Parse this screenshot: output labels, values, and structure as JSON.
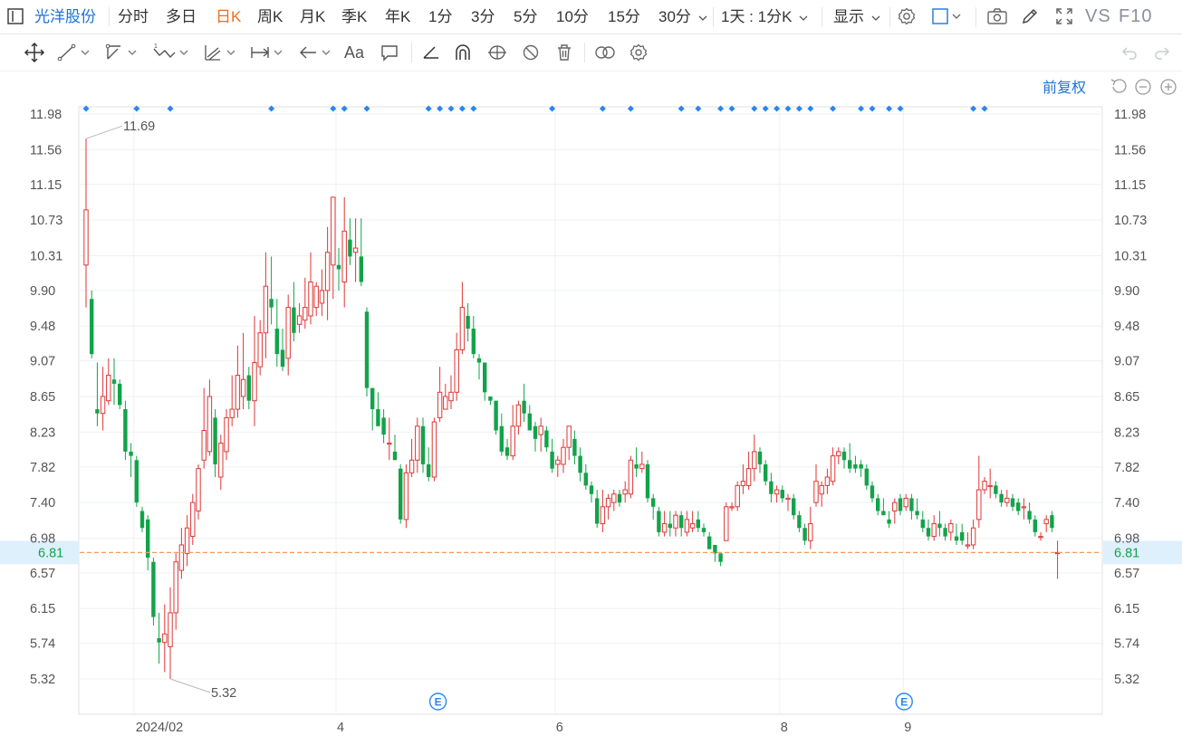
{
  "topbar": {
    "stock_name": "光洋股份",
    "periods": [
      {
        "label": "分时",
        "active": false
      },
      {
        "label": "多日",
        "active": false
      },
      {
        "label": "日K",
        "active": true
      },
      {
        "label": "周K",
        "active": false
      },
      {
        "label": "月K",
        "active": false
      },
      {
        "label": "季K",
        "active": false
      },
      {
        "label": "年K",
        "active": false
      },
      {
        "label": "1分",
        "active": false
      },
      {
        "label": "3分",
        "active": false
      },
      {
        "label": "5分",
        "active": false
      },
      {
        "label": "10分",
        "active": false
      },
      {
        "label": "15分",
        "active": false
      }
    ],
    "period_dropdown": "30分",
    "interval_dropdown": "1天 : 1分K",
    "display_dropdown": "显示",
    "vs_label": "VS",
    "f10_label": "F10"
  },
  "toolbar": {
    "icons": [
      "move-icon",
      "line-icon",
      "ray-icon",
      "wave-icon",
      "channel-icon",
      "range-icon",
      "arrow-icon",
      "text-icon",
      "comment-icon",
      "angle-icon",
      "arch-icon",
      "gann-icon",
      "hide-icon",
      "delete-icon",
      "overlay-icon",
      "settings-icon"
    ]
  },
  "chart": {
    "adjust_label": "前复权",
    "current_price": "6.81",
    "colors": {
      "up": "#e03636",
      "down": "#12a34a",
      "price_line": "#f59a5a",
      "marker": "#2a86f0",
      "grid": "#eef0f3"
    }
  },
  "chart_data": {
    "type": "candlestick",
    "y_ticks": [
      "11.98",
      "11.56",
      "11.15",
      "10.73",
      "10.31",
      "9.90",
      "9.48",
      "9.07",
      "8.65",
      "8.23",
      "7.82",
      "7.40",
      "6.98",
      "6.57",
      "6.15",
      "5.74",
      "5.32"
    ],
    "ylim": [
      5.12,
      12.12
    ],
    "x_labels": [
      {
        "label": "2024/02",
        "index": 9
      },
      {
        "label": "4",
        "index": 45
      },
      {
        "label": "6",
        "index": 84
      },
      {
        "label": "8",
        "index": 124
      },
      {
        "label": "9",
        "index": 146
      }
    ],
    "grid_indices": [
      9,
      45,
      84,
      124,
      146
    ],
    "max_label": "11.69",
    "min_label": "5.32",
    "current_price": 6.81,
    "event_marker": "E",
    "event_indices": [
      63,
      146
    ],
    "diamond_indices": [
      0,
      9,
      15,
      33,
      44,
      46,
      50,
      61,
      63,
      65,
      67,
      69,
      83,
      92,
      97,
      106,
      109,
      113,
      115,
      119,
      121,
      123,
      125,
      127,
      129,
      133,
      138,
      140,
      143,
      145,
      158,
      160
    ],
    "candles": [
      [
        10.2,
        10.85,
        9.7,
        11.69
      ],
      [
        9.8,
        9.15,
        9.1,
        9.9
      ],
      [
        8.5,
        8.45,
        8.3,
        9.05
      ],
      [
        8.45,
        8.65,
        8.25,
        9.0
      ],
      [
        8.6,
        8.9,
        8.55,
        9.1
      ],
      [
        8.85,
        8.8,
        8.55,
        9.1
      ],
      [
        8.8,
        8.55,
        8.5,
        8.85
      ],
      [
        8.5,
        8.0,
        7.9,
        8.6
      ],
      [
        8.0,
        7.95,
        7.7,
        8.1
      ],
      [
        7.9,
        7.4,
        7.35,
        7.95
      ],
      [
        7.3,
        7.1,
        7.05,
        7.35
      ],
      [
        7.2,
        6.75,
        6.6,
        7.25
      ],
      [
        6.7,
        6.05,
        5.95,
        6.75
      ],
      [
        5.8,
        5.75,
        5.5,
        6.1
      ],
      [
        5.75,
        5.85,
        5.4,
        6.2
      ],
      [
        5.7,
        6.1,
        5.32,
        6.4
      ],
      [
        6.1,
        6.7,
        5.9,
        6.8
      ],
      [
        6.6,
        6.9,
        6.5,
        7.1
      ],
      [
        6.8,
        7.1,
        6.65,
        7.25
      ],
      [
        7.0,
        7.4,
        6.9,
        7.5
      ],
      [
        7.3,
        7.8,
        7.2,
        7.85
      ],
      [
        7.9,
        8.25,
        7.8,
        8.75
      ],
      [
        8.0,
        8.65,
        7.95,
        8.85
      ],
      [
        8.4,
        7.85,
        7.7,
        8.5
      ],
      [
        7.7,
        8.1,
        7.55,
        8.2
      ],
      [
        8.0,
        8.4,
        7.9,
        8.5
      ],
      [
        8.4,
        8.5,
        8.3,
        8.9
      ],
      [
        8.5,
        8.9,
        8.4,
        9.25
      ],
      [
        8.65,
        8.85,
        8.5,
        9.4
      ],
      [
        8.9,
        8.6,
        8.5,
        9.0
      ],
      [
        8.6,
        9.05,
        8.3,
        9.6
      ],
      [
        9.0,
        9.4,
        8.9,
        9.55
      ],
      [
        9.4,
        9.95,
        9.1,
        10.35
      ],
      [
        9.8,
        9.7,
        9.5,
        10.3
      ],
      [
        9.45,
        9.15,
        9.0,
        9.8
      ],
      [
        9.2,
        9.0,
        8.95,
        9.45
      ],
      [
        9.1,
        9.7,
        8.9,
        9.85
      ],
      [
        9.7,
        9.4,
        9.3,
        10.0
      ],
      [
        9.5,
        9.6,
        9.4,
        9.75
      ],
      [
        9.55,
        9.7,
        9.45,
        10.05
      ],
      [
        9.6,
        10.0,
        9.5,
        10.35
      ],
      [
        9.7,
        9.95,
        9.6,
        10.0
      ],
      [
        9.75,
        9.9,
        9.6,
        10.15
      ],
      [
        9.9,
        10.35,
        9.55,
        10.65
      ],
      [
        10.2,
        11.0,
        9.8,
        11.0
      ],
      [
        10.2,
        10.15,
        9.9,
        10.4
      ],
      [
        10.0,
        10.6,
        9.7,
        11.0
      ],
      [
        10.5,
        10.3,
        10.2,
        10.75
      ],
      [
        10.35,
        10.4,
        10.0,
        10.75
      ],
      [
        10.3,
        10.0,
        9.95,
        10.75
      ],
      [
        9.65,
        8.75,
        8.65,
        9.7
      ],
      [
        8.75,
        8.5,
        8.25,
        8.75
      ],
      [
        8.5,
        8.3,
        8.3,
        8.7
      ],
      [
        8.4,
        8.2,
        8.1,
        8.5
      ],
      [
        8.1,
        8.1,
        7.9,
        8.4
      ],
      [
        8.0,
        7.9,
        7.9,
        8.2
      ],
      [
        7.8,
        7.2,
        7.15,
        7.85
      ],
      [
        7.2,
        7.75,
        7.1,
        7.85
      ],
      [
        7.75,
        7.9,
        7.7,
        8.15
      ],
      [
        7.9,
        8.3,
        7.75,
        8.4
      ],
      [
        8.3,
        7.85,
        7.75,
        8.4
      ],
      [
        7.85,
        7.7,
        7.65,
        8.05
      ],
      [
        7.7,
        8.35,
        7.65,
        8.4
      ],
      [
        8.4,
        8.7,
        8.35,
        9.0
      ],
      [
        8.5,
        8.65,
        8.5,
        8.8
      ],
      [
        8.6,
        8.7,
        8.5,
        8.9
      ],
      [
        8.7,
        9.2,
        8.6,
        9.4
      ],
      [
        9.2,
        9.7,
        9.15,
        10.0
      ],
      [
        9.6,
        9.45,
        9.3,
        9.75
      ],
      [
        9.45,
        9.15,
        9.1,
        9.6
      ],
      [
        9.1,
        9.05,
        8.85,
        9.15
      ],
      [
        9.05,
        8.7,
        8.6,
        9.05
      ],
      [
        8.65,
        8.6,
        8.55,
        8.65
      ],
      [
        8.6,
        8.25,
        8.2,
        8.6
      ],
      [
        8.3,
        8.0,
        7.95,
        8.45
      ],
      [
        8.05,
        7.95,
        7.9,
        8.15
      ],
      [
        7.95,
        8.3,
        7.9,
        8.55
      ],
      [
        8.3,
        8.55,
        8.2,
        8.6
      ],
      [
        8.6,
        8.45,
        8.35,
        8.8
      ],
      [
        8.45,
        8.25,
        8.25,
        8.55
      ],
      [
        8.3,
        8.15,
        8.0,
        8.35
      ],
      [
        8.2,
        8.3,
        8.0,
        8.4
      ],
      [
        8.25,
        8.05,
        8.0,
        8.3
      ],
      [
        8.0,
        7.8,
        7.75,
        8.15
      ],
      [
        7.85,
        7.9,
        7.7,
        7.95
      ],
      [
        7.85,
        8.05,
        7.75,
        8.15
      ],
      [
        8.05,
        8.3,
        7.9,
        8.3
      ],
      [
        8.15,
        7.95,
        7.85,
        8.25
      ],
      [
        7.95,
        7.75,
        7.65,
        8.05
      ],
      [
        7.75,
        7.6,
        7.55,
        7.85
      ],
      [
        7.6,
        7.5,
        7.4,
        7.65
      ],
      [
        7.45,
        7.15,
        7.1,
        7.55
      ],
      [
        7.15,
        7.35,
        7.05,
        7.55
      ],
      [
        7.35,
        7.45,
        7.2,
        7.5
      ],
      [
        7.4,
        7.5,
        7.3,
        7.55
      ],
      [
        7.5,
        7.4,
        7.35,
        7.55
      ],
      [
        7.5,
        7.55,
        7.4,
        7.65
      ],
      [
        7.5,
        7.9,
        7.45,
        7.95
      ],
      [
        7.85,
        7.8,
        7.7,
        8.05
      ],
      [
        7.8,
        7.85,
        7.75,
        8.0
      ],
      [
        7.85,
        7.45,
        7.4,
        7.9
      ],
      [
        7.45,
        7.35,
        7.2,
        7.5
      ],
      [
        7.3,
        7.05,
        7.0,
        7.35
      ],
      [
        7.05,
        7.15,
        7.0,
        7.3
      ],
      [
        7.15,
        7.1,
        7.0,
        7.3
      ],
      [
        7.1,
        7.25,
        7.0,
        7.3
      ],
      [
        7.25,
        7.1,
        7.0,
        7.3
      ],
      [
        7.05,
        7.2,
        7.0,
        7.3
      ],
      [
        7.1,
        7.15,
        7.05,
        7.3
      ],
      [
        7.2,
        7.1,
        7.05,
        7.3
      ],
      [
        7.1,
        7.05,
        7.0,
        7.15
      ],
      [
        7.0,
        6.85,
        6.85,
        7.05
      ],
      [
        6.9,
        6.8,
        6.7,
        6.9
      ],
      [
        6.8,
        6.7,
        6.65,
        6.8
      ],
      [
        6.95,
        7.35,
        6.95,
        7.4
      ],
      [
        7.35,
        7.35,
        7.3,
        7.4
      ],
      [
        7.35,
        7.6,
        7.3,
        7.65
      ],
      [
        7.6,
        7.65,
        7.5,
        7.85
      ],
      [
        7.6,
        7.8,
        7.55,
        8.0
      ],
      [
        7.8,
        8.0,
        7.65,
        8.2
      ],
      [
        8.0,
        7.85,
        7.75,
        8.05
      ],
      [
        7.85,
        7.65,
        7.6,
        7.9
      ],
      [
        7.65,
        7.5,
        7.4,
        7.75
      ],
      [
        7.5,
        7.55,
        7.4,
        7.6
      ],
      [
        7.55,
        7.45,
        7.4,
        7.6
      ],
      [
        7.45,
        7.45,
        7.3,
        7.5
      ],
      [
        7.45,
        7.25,
        7.2,
        7.5
      ],
      [
        7.25,
        7.1,
        7.05,
        7.3
      ],
      [
        7.1,
        6.95,
        6.9,
        7.15
      ],
      [
        6.95,
        7.15,
        6.85,
        7.35
      ],
      [
        7.4,
        7.65,
        7.35,
        7.85
      ],
      [
        7.5,
        7.6,
        7.35,
        7.65
      ],
      [
        7.6,
        7.7,
        7.5,
        7.8
      ],
      [
        7.65,
        7.95,
        7.6,
        8.05
      ],
      [
        7.95,
        8.0,
        7.85,
        8.05
      ],
      [
        8.0,
        7.9,
        7.8,
        8.05
      ],
      [
        7.9,
        7.8,
        7.75,
        8.1
      ],
      [
        7.85,
        7.8,
        7.75,
        7.95
      ],
      [
        7.85,
        7.8,
        7.7,
        7.9
      ],
      [
        7.8,
        7.6,
        7.55,
        7.85
      ],
      [
        7.6,
        7.45,
        7.4,
        7.65
      ],
      [
        7.45,
        7.3,
        7.25,
        7.5
      ],
      [
        7.3,
        7.25,
        7.25,
        7.45
      ],
      [
        7.2,
        7.15,
        7.1,
        7.3
      ],
      [
        7.3,
        7.4,
        7.15,
        7.45
      ],
      [
        7.45,
        7.3,
        7.25,
        7.5
      ],
      [
        7.35,
        7.45,
        7.3,
        7.5
      ],
      [
        7.45,
        7.3,
        7.2,
        7.5
      ],
      [
        7.3,
        7.25,
        7.2,
        7.45
      ],
      [
        7.2,
        7.1,
        7.05,
        7.3
      ],
      [
        7.1,
        7.0,
        6.95,
        7.2
      ],
      [
        7.0,
        7.15,
        6.95,
        7.25
      ],
      [
        7.15,
        7.1,
        7.0,
        7.3
      ],
      [
        7.1,
        7.0,
        6.95,
        7.15
      ],
      [
        7.05,
        7.15,
        6.95,
        7.2
      ],
      [
        7.0,
        6.95,
        6.9,
        7.15
      ],
      [
        7.05,
        6.95,
        6.9,
        7.15
      ],
      [
        6.9,
        6.9,
        6.85,
        7.05
      ],
      [
        6.9,
        7.1,
        6.85,
        7.2
      ],
      [
        7.2,
        7.55,
        7.1,
        7.95
      ],
      [
        7.55,
        7.65,
        7.5,
        7.7
      ],
      [
        7.6,
        7.6,
        7.45,
        7.8
      ],
      [
        7.6,
        7.5,
        7.45,
        7.65
      ],
      [
        7.5,
        7.4,
        7.35,
        7.55
      ],
      [
        7.4,
        7.45,
        7.35,
        7.55
      ],
      [
        7.45,
        7.35,
        7.3,
        7.5
      ],
      [
        7.4,
        7.3,
        7.25,
        7.45
      ],
      [
        7.35,
        7.35,
        7.2,
        7.45
      ],
      [
        7.3,
        7.2,
        7.15,
        7.4
      ],
      [
        7.2,
        7.05,
        7.0,
        7.25
      ],
      [
        7.0,
        7.0,
        6.95,
        7.05
      ],
      [
        7.15,
        7.2,
        7.05,
        7.25
      ],
      [
        7.25,
        7.1,
        7.05,
        7.3
      ],
      [
        6.8,
        6.81,
        6.5,
        6.95
      ]
    ]
  }
}
